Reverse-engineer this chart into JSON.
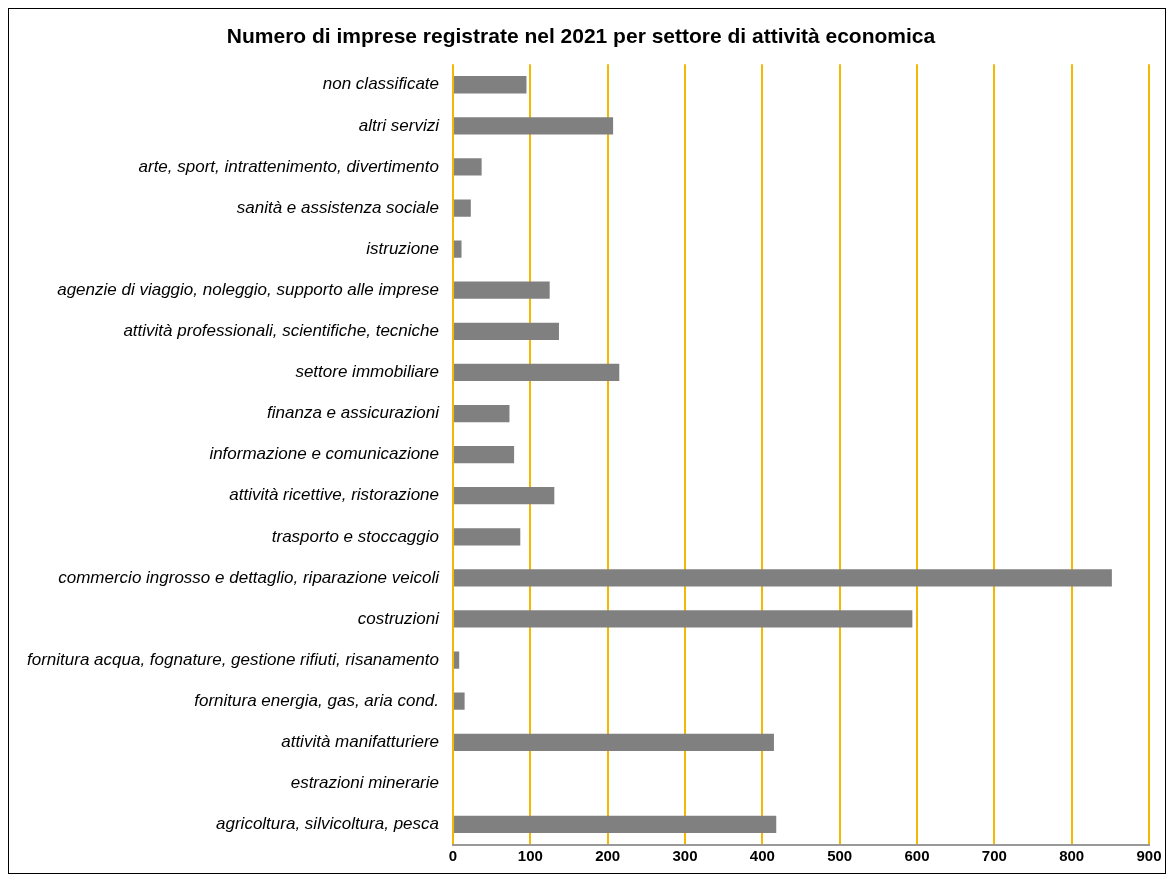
{
  "chart_data": {
    "type": "bar",
    "orientation": "horizontal",
    "title": "Numero di imprese registrate nel 2021 per settore di attività economica",
    "categories": [
      "non classificate",
      "altri servizi",
      "arte, sport, intrattenimento, divertimento",
      "sanità e assistenza sociale",
      "istruzione",
      "agenzie di viaggio, noleggio, supporto alle imprese",
      "attività professionali, scientifiche, tecniche",
      "settore immobiliare",
      "finanza e assicurazioni",
      "informazione e comunicazione",
      "attività ricettive, ristorazione",
      "trasporto e stoccaggio",
      "commercio ingrosso e dettaglio, riparazione veicoli",
      "costruzioni",
      "fornitura acqua, fognature, gestione rifiuti, risanamento",
      "fornitura energia, gas, aria cond.",
      "attività manifatturiere",
      "estrazioni minerarie",
      "agricoltura, silvicoltura, pesca"
    ],
    "values": [
      95,
      207,
      37,
      23,
      11,
      125,
      137,
      215,
      73,
      79,
      131,
      87,
      852,
      594,
      8,
      15,
      415,
      0,
      418
    ],
    "color": "#808080",
    "xlim": [
      0,
      900
    ],
    "xticks": [
      0,
      100,
      200,
      300,
      400,
      500,
      600,
      700,
      800,
      900
    ],
    "grid": "x",
    "legend": false
  }
}
